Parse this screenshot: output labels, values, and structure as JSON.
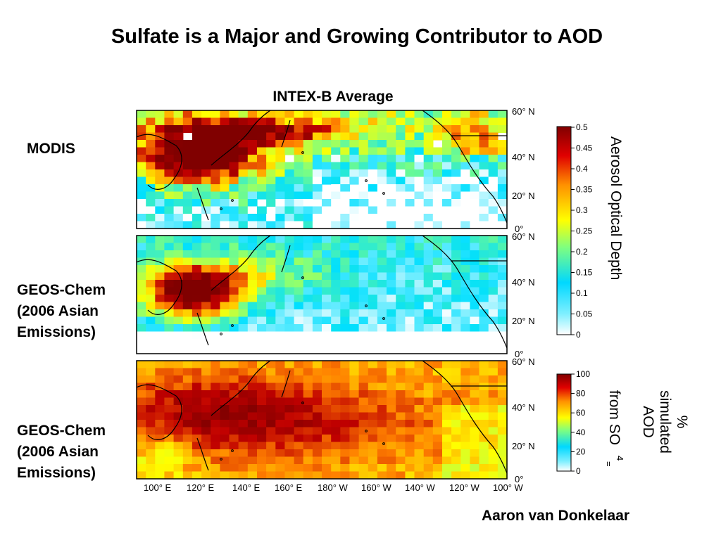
{
  "title": "Sulfate is a Major and Growing Contributor to AOD",
  "subtitle": "INTEX-B Average",
  "author": "Aaron van Donkelaar",
  "panels": [
    {
      "label_lines": [
        "MODIS"
      ]
    },
    {
      "label_lines": [
        "GEOS-Chem",
        "(2006 Asian",
        "Emissions)"
      ]
    },
    {
      "label_lines": [
        "GEOS-Chem",
        "(2006 Asian",
        "Emissions)"
      ]
    }
  ],
  "lat_labels": [
    "60° N",
    "40° N",
    "20° N",
    "0°"
  ],
  "lon_labels": [
    "100° E",
    "120° E",
    "140° E",
    "160° E",
    "180° W",
    "160° W",
    "140° W",
    "120° W",
    "100° W"
  ],
  "colorbars": [
    {
      "title": "Aerosol Optical Depth",
      "ticks": [
        "0.5",
        "0.45",
        "0.4",
        "0.35",
        "0.3",
        "0.25",
        "0.2",
        "0.15",
        "0.1",
        "0.05",
        "0"
      ]
    },
    {
      "title_lines": [
        "%",
        "simulated",
        "AOD",
        "from SO"
      ],
      "subscript": "4",
      "superscript": "=",
      "ticks": [
        "100",
        "80",
        "60",
        "40",
        "20",
        "0"
      ]
    }
  ],
  "colormap": [
    "#ffffff",
    "#00dfff",
    "#7fff7f",
    "#ffff00",
    "#ff8000",
    "#c00000",
    "#800000"
  ]
}
